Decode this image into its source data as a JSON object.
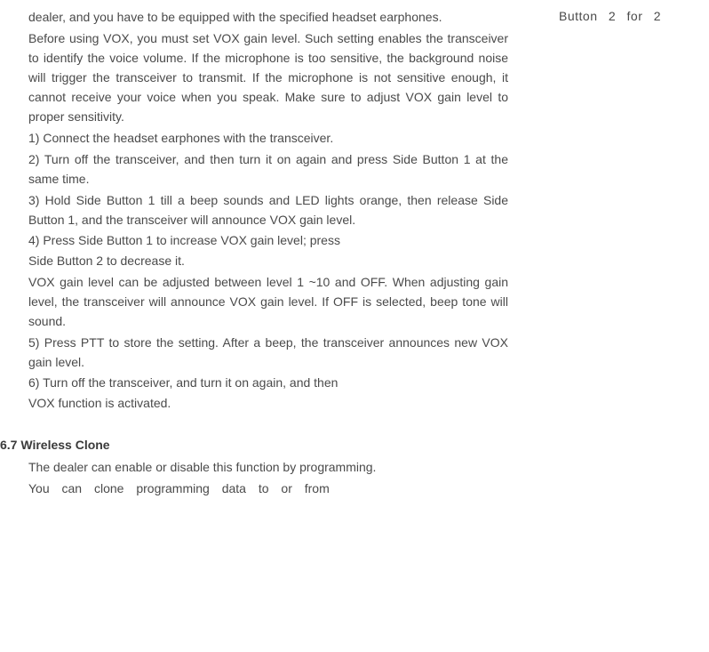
{
  "rightFragment": "Button 2 for 2",
  "main": {
    "p1": "dealer, and you have to be equipped with the specified headset earphones.",
    "p2": "Before using VOX, you must set VOX gain level. Such setting enables the transceiver to identify the voice volume. If   the microphone is too sensitive, the background noise will trigger the transceiver to transmit. If the microphone is not sensitive enough, it cannot receive your voice when you speak. Make sure to adjust VOX gain level to proper sensitivity.",
    "s1": "1)      Connect the headset earphones with the transceiver.",
    "s2": "2)   Turn  off   the   transceiver,   and   then   turn   it   on   again   and press Side Button 1 at the same time.",
    "s3": "3)   Hold    Side    Button   1    till    a    beep    sounds    and    LED    lights orange,    then    release    Side   Button   1,    and   the   transceiver  will announce VOX gain level.",
    "s4a": "4)      Press   Side   Button   1   to   increase   VOX   gain   level;  press",
    "s4b": "Side Button 2 to decrease it.",
    "p3": "VOX gain level can be adjusted between level 1 ~10 and OFF. When adjusting gain level, the transceiver will announce VOX gain level. If OFF is selected, beep tone will sound.",
    "s5": "5)    Press    PTT    to    store    the    setting.    After    a    beep,     the transceiver announces new VOX gain level.",
    "s6a": "6)       Turn  off   the   transceiver,   and   turn   it   on   again,   and   then",
    "s6b": "VOX function is activated.",
    "h67": "6.7 Wireless Clone",
    "p4": "The     dealer     can     enable     or     disable    this    function     by programming.",
    "p5": "You    can    clone    programming    data    to    or    from"
  }
}
